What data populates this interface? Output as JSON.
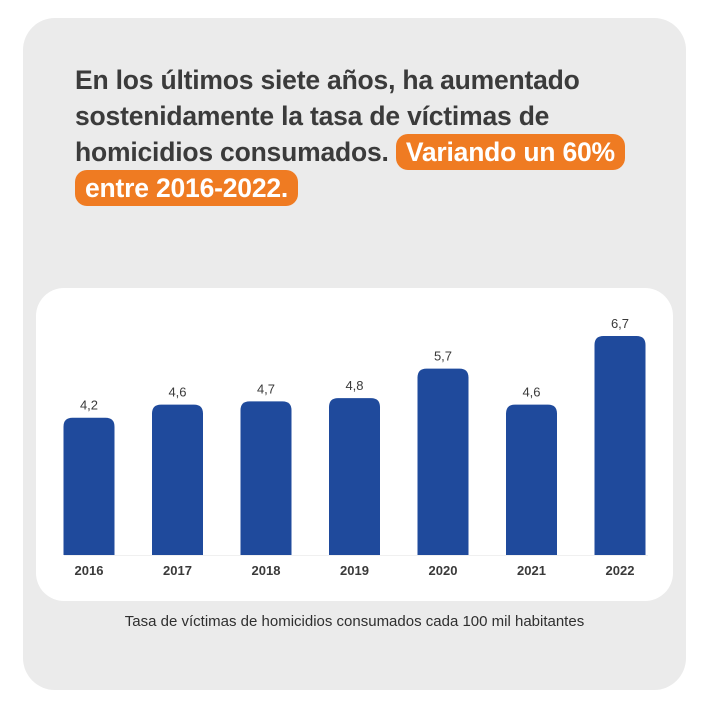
{
  "headline": {
    "text": "En los últimos siete años, ha aumentado sostenidamente la tasa de víctimas de homicidios consumados.",
    "highlight": "Variando un 60% entre 2016-2022."
  },
  "chart_data": {
    "type": "bar",
    "title": "",
    "xlabel": "",
    "ylabel": "",
    "categories": [
      "2016",
      "2017",
      "2018",
      "2019",
      "2020",
      "2021",
      "2022"
    ],
    "values": [
      4.2,
      4.6,
      4.7,
      4.8,
      5.7,
      4.6,
      6.7
    ],
    "value_labels": [
      "4,2",
      "4,6",
      "4,7",
      "4,8",
      "5,7",
      "4,6",
      "6,7"
    ],
    "ylim": [
      0,
      6.7
    ],
    "grid": false,
    "bar_color": "#1f4a9c"
  },
  "caption": "Tasa de víctimas de homicidios consumados cada 100 mil habitantes",
  "colors": {
    "card_bg": "#ebebeb",
    "highlight_bg": "#ef7b22",
    "headline_text": "#3b3b3b",
    "bar": "#1f4a9c"
  }
}
